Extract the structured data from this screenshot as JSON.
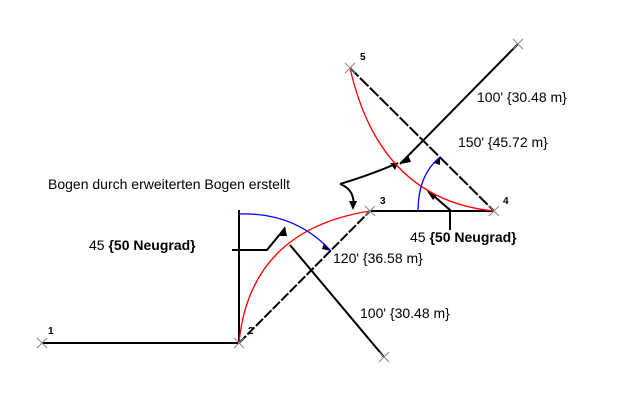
{
  "points": [
    "1",
    "2",
    "3",
    "4",
    "5"
  ],
  "labels": {
    "callout": "Bogen durch erweiterten Bogen erstellt",
    "angle_left_value": "45",
    "angle_left_unit": "{50 Neugrad}",
    "angle_right_value": "45",
    "angle_right_unit": "{50 Neugrad}",
    "dist_120": "120' {36.58 m}",
    "dist_100_lower": "100' {30.48 m}",
    "dist_100_upper": "100' {30.48 m}",
    "dist_150": "150' {45.72 m}"
  },
  "colors": {
    "line": "#000000",
    "arc_red": "#ff0000",
    "arc_blue": "#0000ff"
  }
}
